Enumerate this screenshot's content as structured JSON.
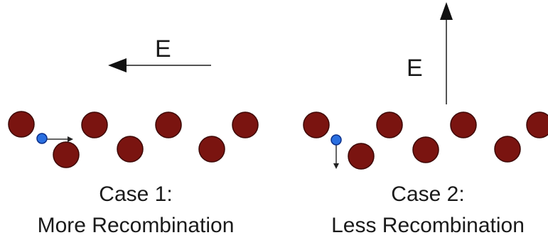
{
  "colors": {
    "ion": "#7a1410",
    "ion_stroke": "#3d0806",
    "carrier": "#2a6fe0",
    "carrier_stroke": "#0b2f8a",
    "arrow": "#333333",
    "text": "#1a1a1a"
  },
  "case1": {
    "field_label": "E",
    "field_direction": "left",
    "carrier_motion": "right",
    "caption_line1": "Case 1:",
    "caption_line2": "More Recombination"
  },
  "case2": {
    "field_label": "E",
    "field_direction": "up",
    "carrier_motion": "down",
    "caption_line1": "Case 2:",
    "caption_line2": "Less Recombination"
  }
}
